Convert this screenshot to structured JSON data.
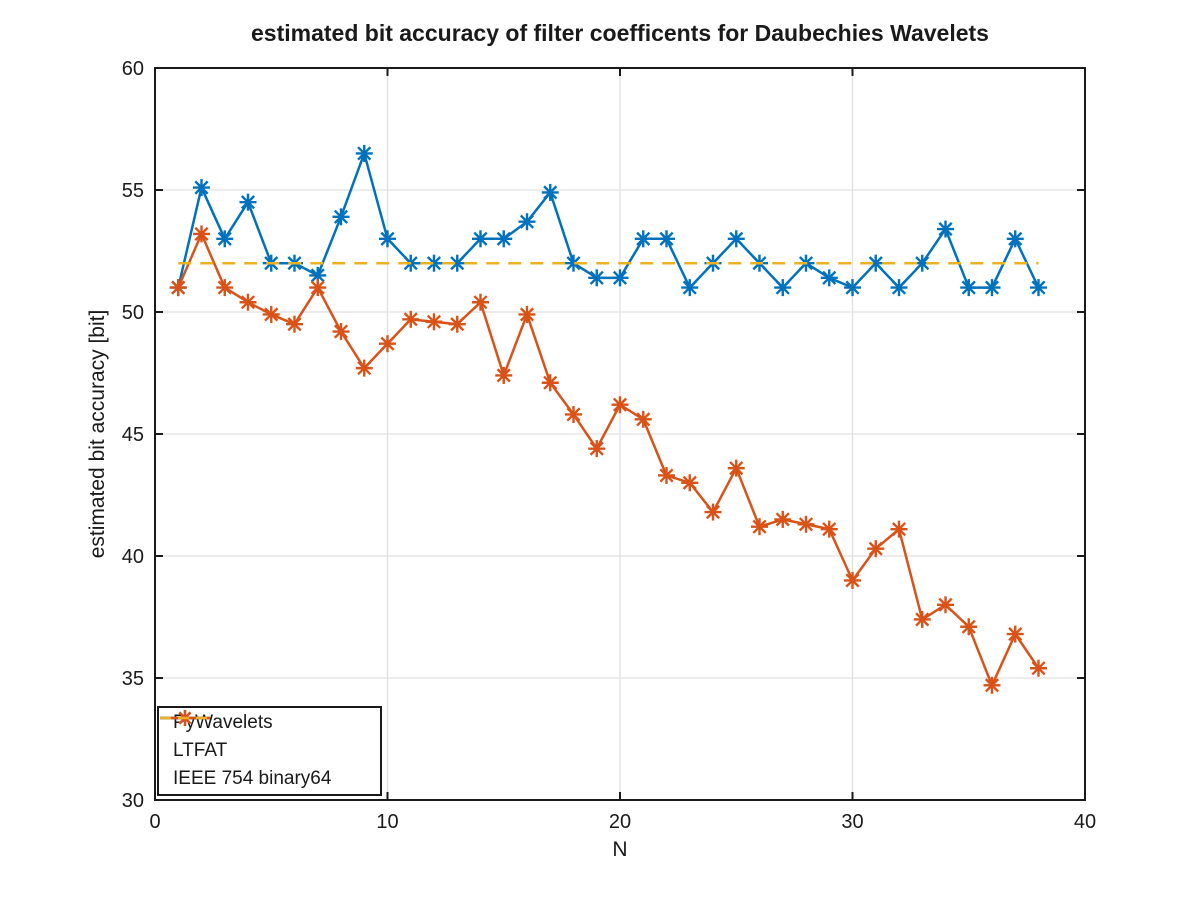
{
  "title": "estimated bit accuracy of filter coefficents for Daubechies Wavelets",
  "colors": {
    "background": "#ffffff",
    "axis": "#1a1a1a",
    "grid": "#e0e0e0",
    "text": "#1a1a1a",
    "series_blue": "#0072BD",
    "series_orange": "#D95319",
    "series_yellow": "#EDB120"
  },
  "chart_data": {
    "type": "line",
    "title": "estimated bit accuracy of filter coefficents for Daubechies Wavelets",
    "xlabel": "N",
    "ylabel": "estimated bit accuracy [bit]",
    "xlim": [
      0,
      40
    ],
    "ylim": [
      30,
      60
    ],
    "xticks": [
      0,
      10,
      20,
      30,
      40
    ],
    "yticks": [
      30,
      35,
      40,
      45,
      50,
      55,
      60
    ],
    "grid": true,
    "legend_position": "southwest-inside",
    "x": [
      1,
      2,
      3,
      4,
      5,
      6,
      7,
      8,
      9,
      10,
      11,
      12,
      13,
      14,
      15,
      16,
      17,
      18,
      19,
      20,
      21,
      22,
      23,
      24,
      25,
      26,
      27,
      28,
      29,
      30,
      31,
      32,
      33,
      34,
      35,
      36,
      37,
      38
    ],
    "series": [
      {
        "name": "PyWavelets",
        "color": "#0072BD",
        "marker": "asterisk",
        "style": "solid",
        "values": [
          51.0,
          55.1,
          53.0,
          54.5,
          52.0,
          52.0,
          51.5,
          53.9,
          56.5,
          53.0,
          52.0,
          52.0,
          52.0,
          53.0,
          53.0,
          53.7,
          54.9,
          52.0,
          51.4,
          51.4,
          53.0,
          53.0,
          51.0,
          52.0,
          53.0,
          52.0,
          51.0,
          52.0,
          51.4,
          51.0,
          52.0,
          51.0,
          52.0,
          53.4,
          51.0,
          51.0,
          53.0,
          51.0
        ]
      },
      {
        "name": "LTFAT",
        "color": "#D95319",
        "marker": "asterisk",
        "style": "solid",
        "values": [
          51.0,
          53.2,
          51.0,
          50.4,
          49.9,
          49.5,
          51.0,
          49.2,
          47.7,
          48.7,
          49.7,
          49.6,
          49.5,
          50.4,
          47.4,
          49.9,
          47.1,
          45.8,
          44.4,
          46.2,
          45.6,
          43.3,
          43.0,
          41.8,
          43.6,
          41.2,
          41.5,
          41.3,
          41.1,
          39.0,
          40.3,
          41.1,
          37.4,
          38.0,
          37.1,
          34.7,
          36.8,
          35.4
        ]
      },
      {
        "name": "IEEE 754 binary64",
        "color": "#EDB120",
        "marker": "none",
        "style": "dashed",
        "constant": 52,
        "x_range": [
          1,
          38
        ]
      }
    ]
  }
}
